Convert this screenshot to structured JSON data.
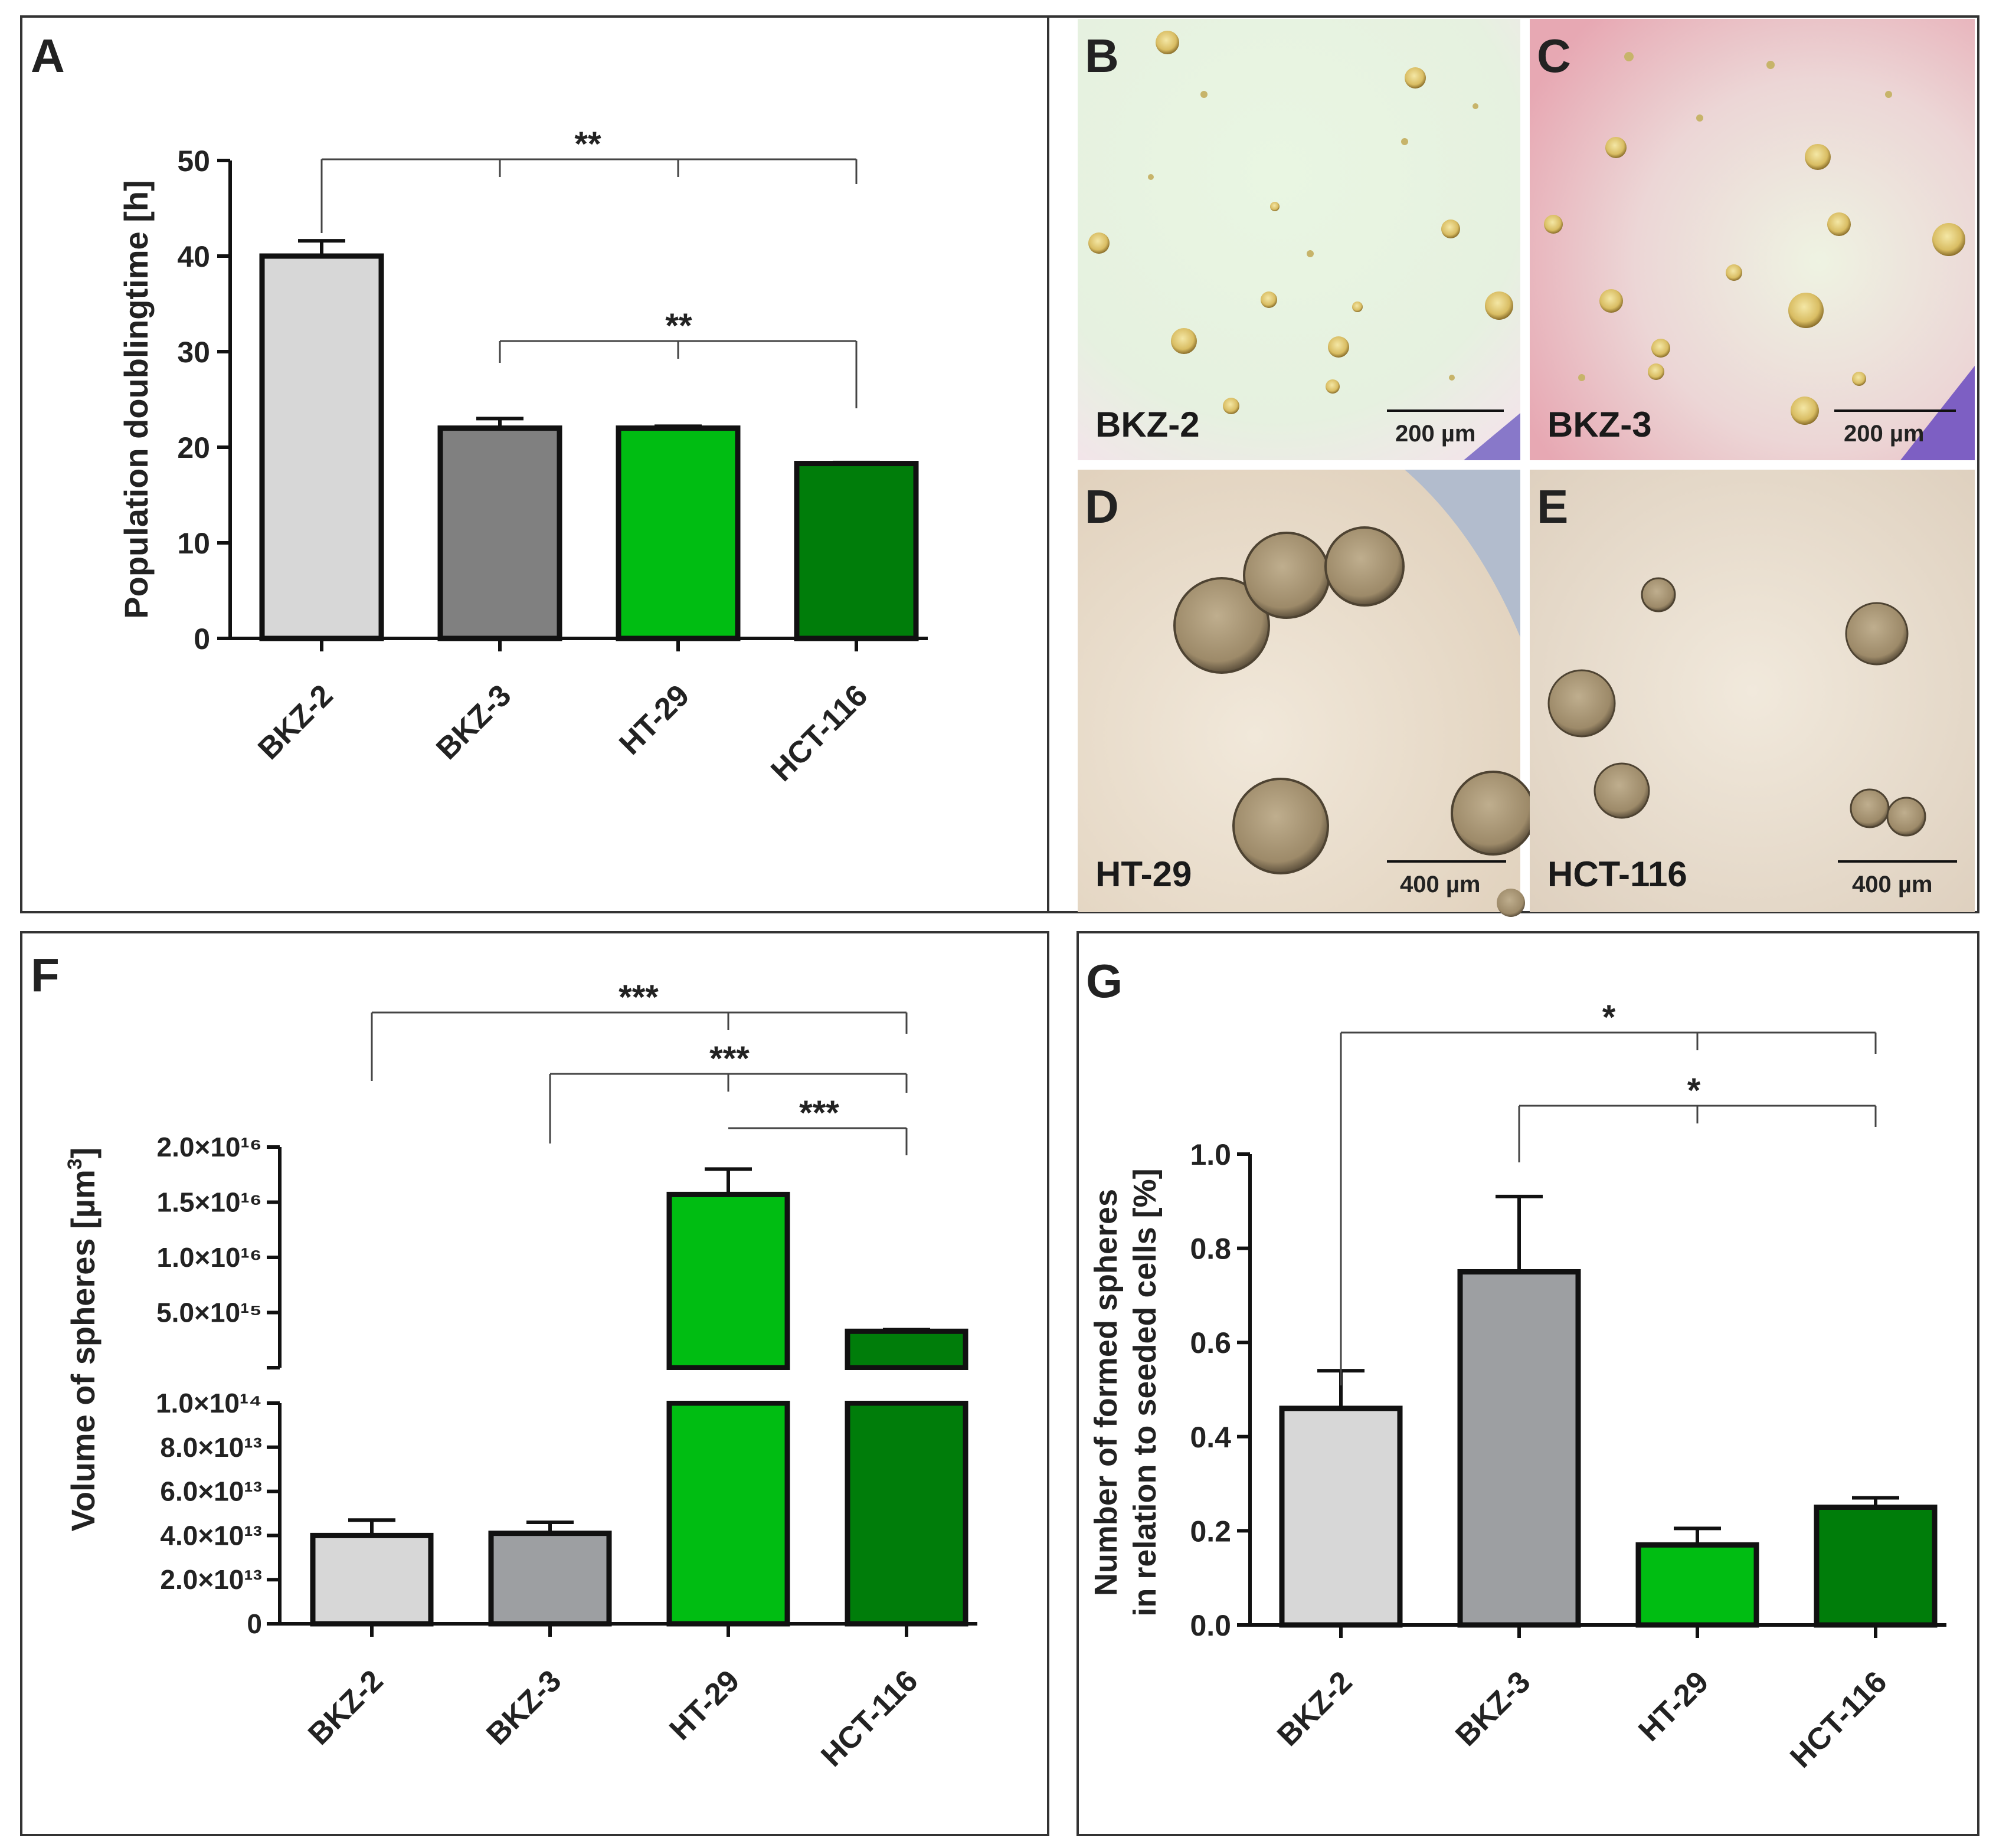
{
  "colors": {
    "bkz2": "#d7d7d7",
    "bkz3": "#808080",
    "bkz3_g": "#9d9fa2",
    "ht29": "#00bd12",
    "hct116": "#007d0a"
  },
  "panels": {
    "A": {
      "letter": "A"
    },
    "B": {
      "letter": "B",
      "cell_line": "BKZ-2",
      "scale": "200 µm"
    },
    "C": {
      "letter": "C",
      "cell_line": "BKZ-3",
      "scale": "200 µm"
    },
    "D": {
      "letter": "D",
      "cell_line": "HT-29",
      "scale": "400 µm"
    },
    "E": {
      "letter": "E",
      "cell_line": "HCT-116",
      "scale": "400 µm"
    },
    "F": {
      "letter": "F"
    },
    "G": {
      "letter": "G"
    }
  },
  "chart_data": [
    {
      "id": "A",
      "type": "bar",
      "ylabel": "Population doublingtime [h]",
      "categories": [
        "BKZ-2",
        "BKZ-3",
        "HT-29",
        "HCT-116"
      ],
      "values": [
        40,
        22,
        22,
        18.3
      ],
      "errors": [
        1.6,
        1.0,
        0.2,
        0.1
      ],
      "ylim": [
        0,
        50
      ],
      "yticks": [
        0,
        10,
        20,
        30,
        40,
        50
      ],
      "significance": [
        {
          "label": "**",
          "from": "BKZ-2",
          "to": [
            "BKZ-3",
            "HT-29",
            "HCT-116"
          ]
        },
        {
          "label": "**",
          "from": "BKZ-3",
          "to": [
            "HT-29",
            "HCT-116"
          ]
        }
      ]
    },
    {
      "id": "F",
      "type": "bar",
      "ylabel": "Volume of spheres [µm³]",
      "ylabel_main": "Volume of spheres [µm",
      "ylabel_sup": "3",
      "ylabel_end": "]",
      "categories": [
        "BKZ-2",
        "BKZ-3",
        "HT-29",
        "HCT-116"
      ],
      "values": [
        40000000000000.0,
        41000000000000.0,
        1.57e+16,
        3300000000000000.0
      ],
      "errors": [
        7000000000000.0,
        5000000000000.0,
        2300000000000000.0,
        150000000000000.0
      ],
      "axis_break": true,
      "lower_range": [
        0,
        100000000000000.0
      ],
      "upper_range": [
        0,
        2e+16
      ],
      "lower_ticks": [
        "0",
        "2.0×10¹³",
        "4.0×10¹³",
        "6.0×10¹³",
        "8.0×10¹³",
        "1.0×10¹⁴"
      ],
      "upper_ticks": [
        "5.0×10¹⁵",
        "1.0×10¹⁶",
        "1.5×10¹⁶",
        "2.0×10¹⁶"
      ],
      "significance": [
        {
          "label": "***",
          "from": "BKZ-2",
          "to": [
            "HT-29",
            "HCT-116"
          ]
        },
        {
          "label": "***",
          "from": "BKZ-3",
          "to": [
            "HT-29",
            "HCT-116"
          ]
        },
        {
          "label": "***",
          "from": "HT-29",
          "to": [
            "HCT-116"
          ]
        }
      ]
    },
    {
      "id": "G",
      "type": "bar",
      "ylabel_lines": [
        "Number of formed spheres",
        "in relation to seeded cells [%]"
      ],
      "categories": [
        "BKZ-2",
        "BKZ-3",
        "HT-29",
        "HCT-116"
      ],
      "values": [
        0.46,
        0.75,
        0.17,
        0.25
      ],
      "errors": [
        0.08,
        0.16,
        0.035,
        0.02
      ],
      "ylim": [
        0,
        1.0
      ],
      "yticks": [
        "0.0",
        "0.2",
        "0.4",
        "0.6",
        "0.8",
        "1.0"
      ],
      "significance": [
        {
          "label": "*",
          "from": "BKZ-2",
          "to": [
            "HT-29",
            "HCT-116"
          ]
        },
        {
          "label": "*",
          "from": "BKZ-3",
          "to": [
            "HT-29",
            "HCT-116"
          ]
        }
      ]
    }
  ]
}
